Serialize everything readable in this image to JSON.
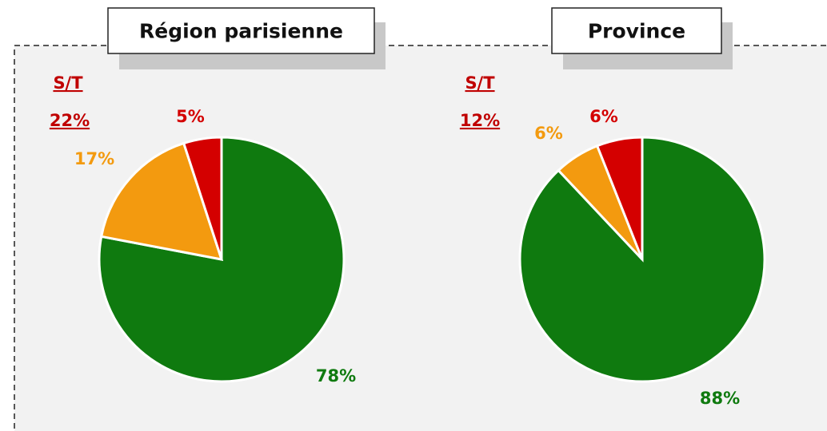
{
  "chart_data": [
    {
      "type": "pie",
      "title": "Région parisienne",
      "values": [
        78,
        17,
        5
      ],
      "value_labels": [
        "78%",
        "17%",
        "5%"
      ],
      "colors": [
        "#0f7a0f",
        "#f39a0f",
        "#d40000"
      ],
      "annotation": {
        "title": "S/T",
        "value": 22,
        "value_label": "22%"
      }
    },
    {
      "type": "pie",
      "title": "Province",
      "values": [
        88,
        6,
        6
      ],
      "value_labels": [
        "88%",
        "6%",
        "6%"
      ],
      "colors": [
        "#0f7a0f",
        "#f39a0f",
        "#d40000"
      ],
      "annotation": {
        "title": "S/T",
        "value": 12,
        "value_label": "12%"
      }
    }
  ]
}
